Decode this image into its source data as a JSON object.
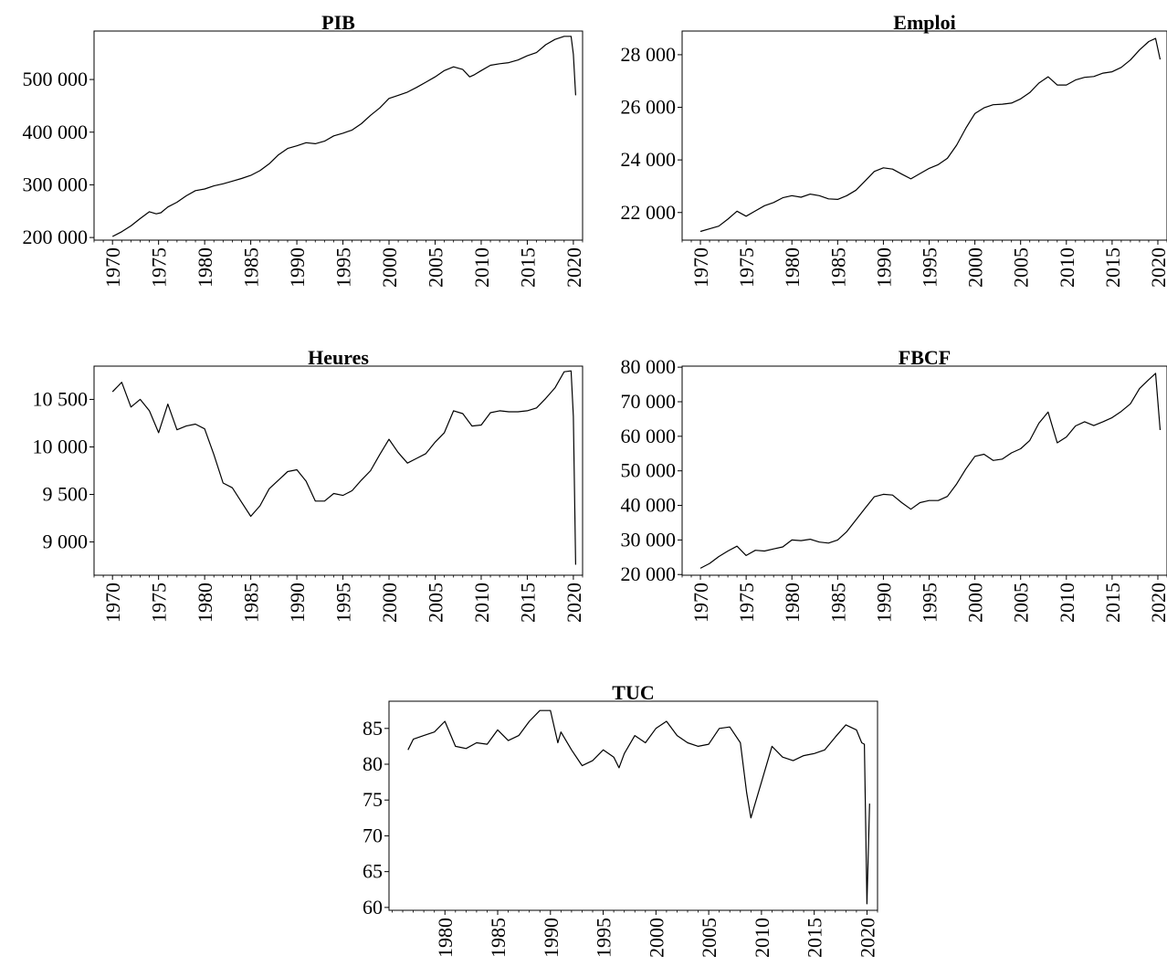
{
  "figure": {
    "background": "#ffffff",
    "line_color": "#000000"
  },
  "chart_data": [
    {
      "id": "pib",
      "type": "line",
      "title": "PIB",
      "xlabel": "",
      "ylabel": "",
      "xlim": [
        1968,
        2021
      ],
      "ylim": [
        195000,
        592000
      ],
      "yticks": [
        200000,
        300000,
        400000,
        500000
      ],
      "ytick_labels": [
        "200 000",
        "300 000",
        "400 000",
        "500 000"
      ],
      "xticks": [
        1970,
        1975,
        1980,
        1985,
        1990,
        1995,
        2000,
        2005,
        2010,
        2015,
        2020
      ],
      "xtick_labels": [
        "1970",
        "1975",
        "1980",
        "1985",
        "1990",
        "1995",
        "2000",
        "2005",
        "2010",
        "2015",
        "2020"
      ],
      "grid": false,
      "x": [
        1970,
        1971,
        1972,
        1973,
        1974,
        1974.75,
        1975.25,
        1976,
        1977,
        1978,
        1979,
        1980,
        1981,
        1982,
        1983,
        1984,
        1985,
        1986,
        1987,
        1988,
        1989,
        1990,
        1991,
        1992,
        1993,
        1994,
        1995,
        1996,
        1997,
        1998,
        1999,
        2000,
        2001,
        2002,
        2003,
        2004,
        2005,
        2006,
        2007,
        2008,
        2008.75,
        2009.25,
        2010,
        2011,
        2012,
        2013,
        2014,
        2015,
        2016,
        2017,
        2018,
        2019,
        2019.75,
        2020.0,
        2020.25
      ],
      "y": [
        202000,
        211000,
        222000,
        236000,
        249000,
        245000,
        247000,
        258000,
        267000,
        279000,
        289000,
        292000,
        298000,
        302000,
        307000,
        312000,
        318000,
        327000,
        340000,
        357000,
        369000,
        374000,
        380000,
        378000,
        383000,
        393000,
        398000,
        404000,
        416000,
        432000,
        446000,
        464000,
        470000,
        476000,
        485000,
        495000,
        505000,
        517000,
        524000,
        519000,
        505000,
        509000,
        517000,
        527000,
        530000,
        532000,
        537000,
        545000,
        551000,
        566000,
        576000,
        582000,
        582000,
        548000,
        470000
      ]
    },
    {
      "id": "emploi",
      "type": "line",
      "title": "Emploi",
      "xlabel": "",
      "ylabel": "",
      "xlim": [
        1968,
        2021
      ],
      "ylim": [
        20950,
        28900
      ],
      "yticks": [
        22000,
        24000,
        26000,
        28000
      ],
      "ytick_labels": [
        "22 000",
        "24 000",
        "26 000",
        "28 000"
      ],
      "xticks": [
        1970,
        1975,
        1980,
        1985,
        1990,
        1995,
        2000,
        2005,
        2010,
        2015,
        2020
      ],
      "xtick_labels": [
        "1970",
        "1975",
        "1980",
        "1985",
        "1990",
        "1995",
        "2000",
        "2005",
        "2010",
        "2015",
        "2020"
      ],
      "grid": false,
      "x": [
        1970,
        1971,
        1972,
        1973,
        1974,
        1975,
        1976,
        1977,
        1978,
        1979,
        1980,
        1981,
        1982,
        1983,
        1984,
        1985,
        1986,
        1987,
        1988,
        1989,
        1990,
        1991,
        1992,
        1993,
        1994,
        1995,
        1996,
        1997,
        1998,
        1999,
        2000,
        2001,
        2002,
        2003,
        2004,
        2005,
        2006,
        2007,
        2008,
        2009,
        2010,
        2011,
        2012,
        2013,
        2014,
        2015,
        2016,
        2017,
        2018,
        2019,
        2019.75,
        2020.25
      ],
      "y": [
        21280,
        21380,
        21480,
        21750,
        22050,
        21860,
        22060,
        22260,
        22380,
        22560,
        22640,
        22580,
        22700,
        22640,
        22520,
        22500,
        22640,
        22850,
        23200,
        23560,
        23700,
        23650,
        23460,
        23280,
        23480,
        23680,
        23820,
        24060,
        24560,
        25200,
        25760,
        25980,
        26100,
        26120,
        26160,
        26320,
        26560,
        26920,
        27160,
        26850,
        26850,
        27040,
        27140,
        27170,
        27300,
        27350,
        27520,
        27800,
        28180,
        28500,
        28620,
        27820
      ]
    },
    {
      "id": "heures",
      "type": "line",
      "title": "Heures",
      "xlabel": "",
      "ylabel": "",
      "xlim": [
        1968,
        2021
      ],
      "ylim": [
        8650,
        10850
      ],
      "yticks": [
        9000,
        9500,
        10000,
        10500
      ],
      "ytick_labels": [
        "9 000",
        "9 500",
        "10 000",
        "10 500"
      ],
      "xticks": [
        1970,
        1975,
        1980,
        1985,
        1990,
        1995,
        2000,
        2005,
        2010,
        2015,
        2020
      ],
      "xtick_labels": [
        "1970",
        "1975",
        "1980",
        "1985",
        "1990",
        "1995",
        "2000",
        "2005",
        "2010",
        "2015",
        "2020"
      ],
      "grid": false,
      "x": [
        1970,
        1971,
        1972,
        1973,
        1974,
        1975,
        1976,
        1977,
        1978,
        1979,
        1980,
        1981,
        1982,
        1983,
        1984,
        1985,
        1986,
        1987,
        1988,
        1989,
        1990,
        1991,
        1992,
        1993,
        1994,
        1995,
        1996,
        1997,
        1998,
        1999,
        2000,
        2001,
        2002,
        2003,
        2004,
        2005,
        2006,
        2007,
        2008,
        2009,
        2010,
        2011,
        2012,
        2013,
        2014,
        2015,
        2016,
        2017,
        2018,
        2019,
        2019.75,
        2020.0,
        2020.25
      ],
      "y": [
        10580,
        10680,
        10420,
        10500,
        10380,
        10150,
        10450,
        10180,
        10220,
        10240,
        10190,
        9920,
        9620,
        9570,
        9420,
        9270,
        9380,
        9560,
        9650,
        9740,
        9760,
        9640,
        9430,
        9430,
        9510,
        9490,
        9540,
        9650,
        9750,
        9920,
        10080,
        9940,
        9830,
        9880,
        9930,
        10050,
        10150,
        10380,
        10350,
        10220,
        10230,
        10360,
        10380,
        10370,
        10370,
        10380,
        10410,
        10510,
        10620,
        10790,
        10800,
        10320,
        8760
      ]
    },
    {
      "id": "fbcf",
      "type": "line",
      "title": "FBCF",
      "xlabel": "",
      "ylabel": "",
      "xlim": [
        1968,
        2021
      ],
      "ylim": [
        19800,
        80300
      ],
      "yticks": [
        20000,
        30000,
        40000,
        50000,
        60000,
        70000,
        80000
      ],
      "ytick_labels": [
        "20 000",
        "30 000",
        "40 000",
        "50 000",
        "60 000",
        "70 000",
        "80 000"
      ],
      "xticks": [
        1970,
        1975,
        1980,
        1985,
        1990,
        1995,
        2000,
        2005,
        2010,
        2015,
        2020
      ],
      "xtick_labels": [
        "1970",
        "1975",
        "1980",
        "1985",
        "1990",
        "1995",
        "2000",
        "2005",
        "2010",
        "2015",
        "2020"
      ],
      "grid": false,
      "x": [
        1970,
        1971,
        1972,
        1973,
        1974,
        1975,
        1976,
        1977,
        1978,
        1979,
        1980,
        1981,
        1982,
        1983,
        1984,
        1985,
        1986,
        1987,
        1988,
        1989,
        1990,
        1991,
        1992,
        1993,
        1994,
        1995,
        1996,
        1997,
        1998,
        1999,
        2000,
        2001,
        2002,
        2003,
        2004,
        2005,
        2006,
        2007,
        2008,
        2009,
        2010,
        2011,
        2012,
        2013,
        2014,
        2015,
        2016,
        2017,
        2018,
        2019,
        2019.75,
        2020.25
      ],
      "y": [
        21800,
        23200,
        25200,
        26800,
        28200,
        25500,
        27000,
        26800,
        27400,
        28000,
        30000,
        29800,
        30200,
        29400,
        29100,
        30000,
        32400,
        35800,
        39200,
        42500,
        43200,
        43000,
        40800,
        38900,
        40800,
        41400,
        41400,
        42600,
        46200,
        50500,
        54200,
        54800,
        53000,
        53400,
        55200,
        56400,
        58800,
        63800,
        67000,
        58100,
        59800,
        63000,
        64200,
        63100,
        64200,
        65400,
        67200,
        69400,
        73800,
        76400,
        78200,
        61800
      ]
    },
    {
      "id": "tuc",
      "type": "line",
      "title": "TUC",
      "xlabel": "",
      "ylabel": "",
      "xlim": [
        1974.7,
        2021
      ],
      "ylim": [
        59.6,
        88.8
      ],
      "yticks": [
        60,
        65,
        70,
        75,
        80,
        85
      ],
      "ytick_labels": [
        "60",
        "65",
        "70",
        "75",
        "80",
        "85"
      ],
      "xticks": [
        1980,
        1985,
        1990,
        1995,
        2000,
        2005,
        2010,
        2015,
        2020
      ],
      "xtick_labels": [
        "1980",
        "1985",
        "1990",
        "1995",
        "2000",
        "2005",
        "2010",
        "2015",
        "2020"
      ],
      "grid": false,
      "x": [
        1976.5,
        1977,
        1978,
        1979,
        1980,
        1981,
        1982,
        1983,
        1984,
        1985,
        1986,
        1987,
        1988,
        1989,
        1990,
        1990.7,
        1991,
        1992,
        1993,
        1994,
        1995,
        1996,
        1996.5,
        1997,
        1998,
        1999,
        2000,
        2001,
        2002,
        2003,
        2004,
        2005,
        2006,
        2007,
        2008,
        2008.6,
        2009,
        2010,
        2011,
        2012,
        2013,
        2014,
        2015,
        2016,
        2017,
        2018,
        2019,
        2019.5,
        2019.75,
        2020.0,
        2020.25
      ],
      "y": [
        82.0,
        83.5,
        84.0,
        84.5,
        86.0,
        82.5,
        82.2,
        83.0,
        82.8,
        84.8,
        83.3,
        84.0,
        86.0,
        87.5,
        87.5,
        83.0,
        84.5,
        82.0,
        79.8,
        80.5,
        82.0,
        81.0,
        79.5,
        81.5,
        84.0,
        83.0,
        85.0,
        86.0,
        84.0,
        83.0,
        82.5,
        82.8,
        85.0,
        85.2,
        83.0,
        76.0,
        72.5,
        77.5,
        82.5,
        81.0,
        80.5,
        81.2,
        81.5,
        82.0,
        83.8,
        85.5,
        84.8,
        83.0,
        82.8,
        60.5,
        74.5
      ]
    }
  ]
}
